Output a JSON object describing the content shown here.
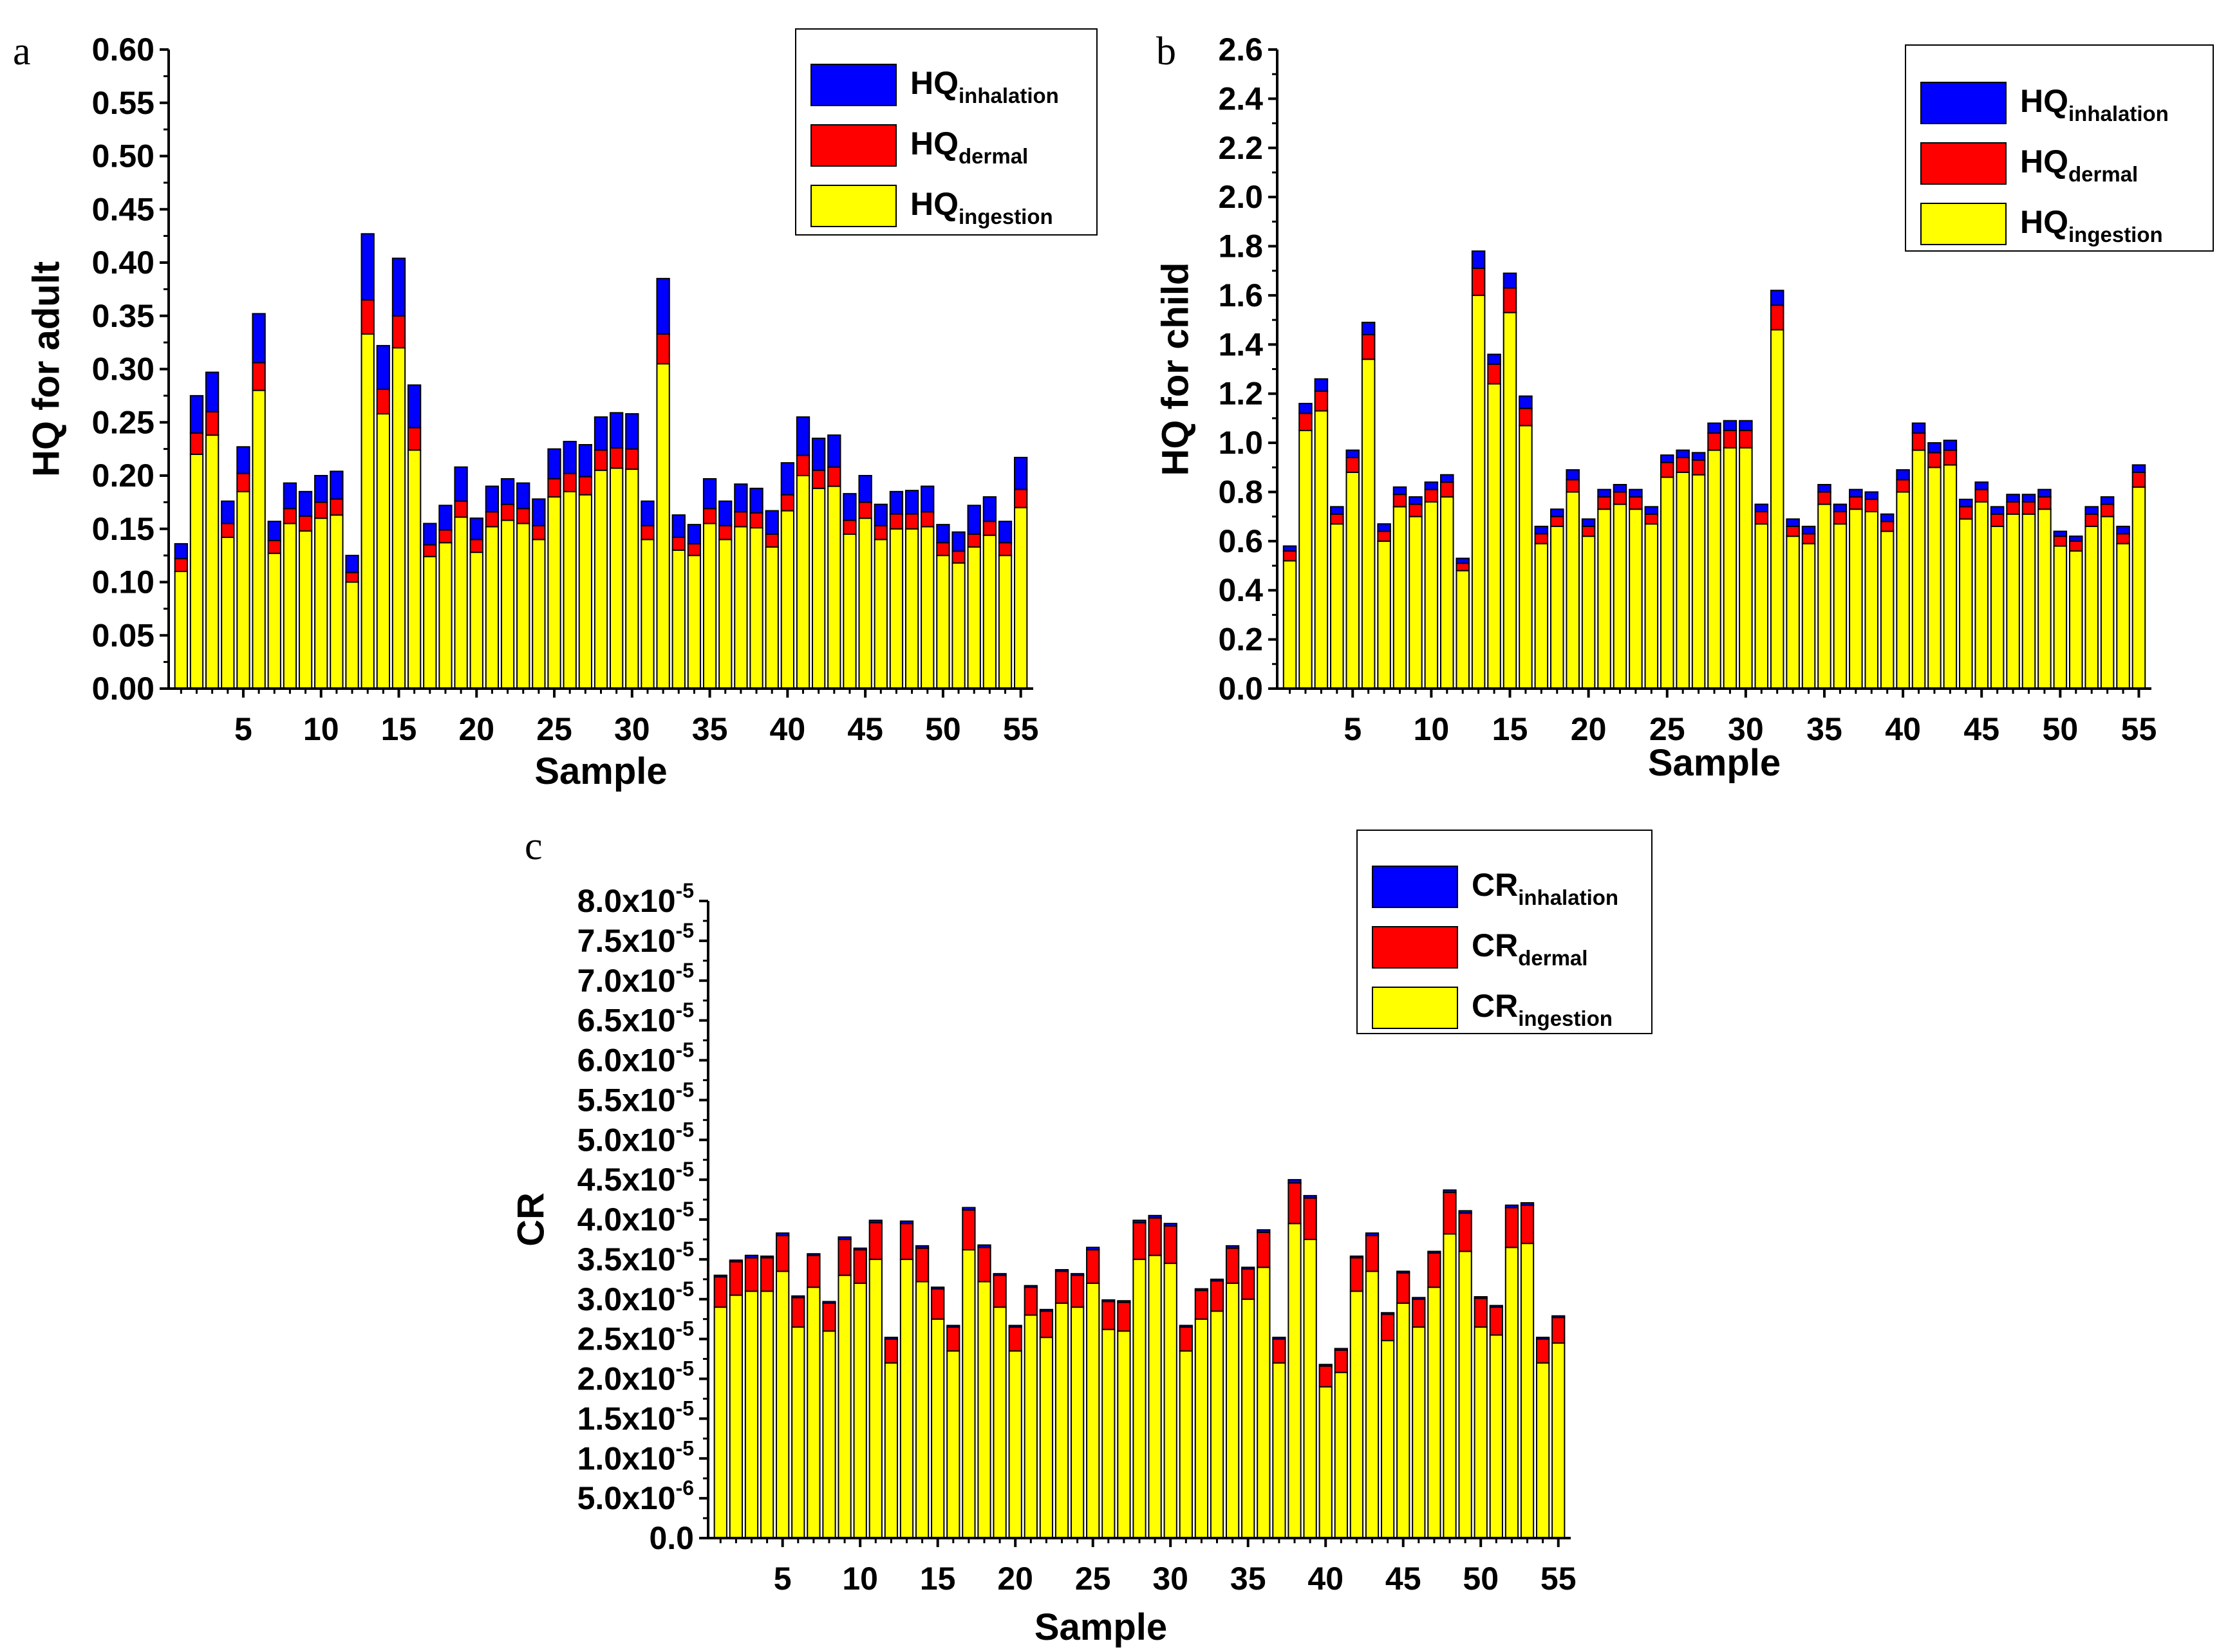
{
  "figure": {
    "colors": {
      "inhalation": "#0000FF",
      "dermal": "#FF0000",
      "ingestion": "#FFFF00",
      "stroke": "#000000"
    }
  },
  "chart_data": [
    {
      "type": "bar",
      "stacked": true,
      "panel_label": "a",
      "xlabel": "Sample",
      "ylabel": "HQ for adult",
      "ylim": [
        0,
        0.6
      ],
      "y_ticks": [
        "0.00",
        "0.05",
        "0.10",
        "0.15",
        "0.20",
        "0.25",
        "0.30",
        "0.35",
        "0.40",
        "0.45",
        "0.50",
        "0.55",
        "0.60"
      ],
      "x_ticks": [
        "5",
        "10",
        "15",
        "20",
        "25",
        "30",
        "35",
        "40",
        "45",
        "50",
        "55"
      ],
      "legend": [
        {
          "main": "HQ",
          "sub": "inhalation",
          "series": "inhalation"
        },
        {
          "main": "HQ",
          "sub": "dermal",
          "series": "dermal"
        },
        {
          "main": "HQ",
          "sub": "ingestion",
          "series": "ingestion"
        }
      ],
      "x": [
        1,
        2,
        3,
        4,
        5,
        6,
        7,
        8,
        9,
        10,
        11,
        12,
        13,
        14,
        15,
        16,
        17,
        18,
        19,
        20,
        21,
        22,
        23,
        24,
        25,
        26,
        27,
        28,
        29,
        30,
        31,
        32,
        33,
        34,
        35,
        36,
        37,
        38,
        39,
        40,
        41,
        42,
        43,
        44,
        45,
        46,
        47,
        48,
        49,
        50,
        51,
        52,
        53,
        54,
        55
      ],
      "series": [
        {
          "name": "HQingestion",
          "key": "ingestion",
          "values": [
            0.11,
            0.22,
            0.238,
            0.142,
            0.185,
            0.28,
            0.127,
            0.155,
            0.148,
            0.16,
            0.163,
            0.1,
            0.333,
            0.258,
            0.32,
            0.224,
            0.124,
            0.137,
            0.161,
            0.128,
            0.152,
            0.158,
            0.155,
            0.14,
            0.18,
            0.185,
            0.182,
            0.205,
            0.207,
            0.206,
            0.14,
            0.305,
            0.13,
            0.125,
            0.155,
            0.14,
            0.152,
            0.151,
            0.133,
            0.167,
            0.2,
            0.188,
            0.19,
            0.145,
            0.16,
            0.14,
            0.15,
            0.15,
            0.152,
            0.125,
            0.118,
            0.133,
            0.144,
            0.125,
            0.17
          ]
        },
        {
          "name": "HQdermal",
          "key": "dermal",
          "values": [
            0.012,
            0.02,
            0.022,
            0.013,
            0.017,
            0.026,
            0.012,
            0.014,
            0.014,
            0.015,
            0.015,
            0.009,
            0.032,
            0.023,
            0.03,
            0.021,
            0.011,
            0.012,
            0.015,
            0.012,
            0.014,
            0.015,
            0.014,
            0.013,
            0.017,
            0.017,
            0.017,
            0.019,
            0.019,
            0.019,
            0.013,
            0.028,
            0.012,
            0.011,
            0.014,
            0.013,
            0.014,
            0.014,
            0.012,
            0.015,
            0.019,
            0.017,
            0.018,
            0.013,
            0.015,
            0.013,
            0.014,
            0.014,
            0.014,
            0.012,
            0.011,
            0.012,
            0.013,
            0.012,
            0.017
          ]
        },
        {
          "name": "HQinhalation",
          "key": "inhalation",
          "values": [
            0.014,
            0.035,
            0.037,
            0.021,
            0.025,
            0.046,
            0.018,
            0.024,
            0.023,
            0.025,
            0.026,
            0.016,
            0.062,
            0.041,
            0.054,
            0.04,
            0.02,
            0.023,
            0.032,
            0.02,
            0.024,
            0.024,
            0.024,
            0.025,
            0.028,
            0.03,
            0.03,
            0.031,
            0.033,
            0.033,
            0.023,
            0.052,
            0.021,
            0.018,
            0.028,
            0.023,
            0.026,
            0.023,
            0.022,
            0.03,
            0.036,
            0.03,
            0.03,
            0.025,
            0.025,
            0.02,
            0.021,
            0.022,
            0.024,
            0.017,
            0.018,
            0.027,
            0.023,
            0.02,
            0.03
          ]
        }
      ]
    },
    {
      "type": "bar",
      "stacked": true,
      "panel_label": "b",
      "xlabel": "Sample",
      "ylabel": "HQ for child",
      "ylim": [
        0,
        2.6
      ],
      "y_ticks": [
        "0.0",
        "0.2",
        "0.4",
        "0.6",
        "0.8",
        "1.0",
        "1.2",
        "1.4",
        "1.6",
        "1.8",
        "2.0",
        "2.2",
        "2.4",
        "2.6"
      ],
      "x_ticks": [
        "5",
        "10",
        "15",
        "20",
        "25",
        "30",
        "35",
        "40",
        "45",
        "50",
        "55"
      ],
      "legend": [
        {
          "main": "HQ",
          "sub": "inhalation",
          "series": "inhalation"
        },
        {
          "main": "HQ",
          "sub": "dermal",
          "series": "dermal"
        },
        {
          "main": "HQ",
          "sub": "ingestion",
          "series": "ingestion"
        }
      ],
      "x": [
        1,
        2,
        3,
        4,
        5,
        6,
        7,
        8,
        9,
        10,
        11,
        12,
        13,
        14,
        15,
        16,
        17,
        18,
        19,
        20,
        21,
        22,
        23,
        24,
        25,
        26,
        27,
        28,
        29,
        30,
        31,
        32,
        33,
        34,
        35,
        36,
        37,
        38,
        39,
        40,
        41,
        42,
        43,
        44,
        45,
        46,
        47,
        48,
        49,
        50,
        51,
        52,
        53,
        54,
        55
      ],
      "series": [
        {
          "name": "HQingestion",
          "key": "ingestion",
          "values": [
            0.52,
            1.05,
            1.13,
            0.67,
            0.88,
            1.34,
            0.6,
            0.74,
            0.7,
            0.76,
            0.78,
            0.48,
            1.6,
            1.24,
            1.53,
            1.07,
            0.59,
            0.66,
            0.8,
            0.62,
            0.73,
            0.75,
            0.73,
            0.67,
            0.86,
            0.88,
            0.87,
            0.97,
            0.98,
            0.98,
            0.67,
            1.46,
            0.62,
            0.59,
            0.75,
            0.67,
            0.73,
            0.72,
            0.64,
            0.8,
            0.97,
            0.9,
            0.91,
            0.69,
            0.76,
            0.66,
            0.71,
            0.71,
            0.73,
            0.58,
            0.56,
            0.66,
            0.7,
            0.59,
            0.82
          ]
        },
        {
          "name": "HQdermal",
          "key": "dermal",
          "values": [
            0.04,
            0.07,
            0.08,
            0.04,
            0.06,
            0.1,
            0.04,
            0.05,
            0.05,
            0.05,
            0.06,
            0.03,
            0.11,
            0.08,
            0.1,
            0.07,
            0.04,
            0.04,
            0.05,
            0.04,
            0.05,
            0.05,
            0.05,
            0.04,
            0.06,
            0.06,
            0.06,
            0.07,
            0.07,
            0.07,
            0.05,
            0.1,
            0.04,
            0.04,
            0.05,
            0.05,
            0.05,
            0.05,
            0.04,
            0.05,
            0.07,
            0.06,
            0.06,
            0.05,
            0.05,
            0.05,
            0.05,
            0.05,
            0.05,
            0.04,
            0.04,
            0.05,
            0.05,
            0.04,
            0.06
          ]
        },
        {
          "name": "HQinhalation",
          "key": "inhalation",
          "values": [
            0.02,
            0.04,
            0.05,
            0.03,
            0.03,
            0.05,
            0.03,
            0.03,
            0.03,
            0.03,
            0.03,
            0.02,
            0.07,
            0.04,
            0.06,
            0.05,
            0.03,
            0.03,
            0.04,
            0.03,
            0.03,
            0.03,
            0.03,
            0.03,
            0.03,
            0.03,
            0.03,
            0.04,
            0.04,
            0.04,
            0.03,
            0.06,
            0.03,
            0.03,
            0.03,
            0.03,
            0.03,
            0.03,
            0.03,
            0.04,
            0.04,
            0.04,
            0.04,
            0.03,
            0.03,
            0.03,
            0.03,
            0.03,
            0.03,
            0.02,
            0.02,
            0.03,
            0.03,
            0.03,
            0.03
          ]
        }
      ]
    },
    {
      "type": "bar",
      "stacked": true,
      "panel_label": "c",
      "xlabel": "Sample",
      "ylabel": "CR",
      "ylim": [
        0,
        8e-05
      ],
      "y_ticks": [
        {
          "mant": "0.0",
          "exp": ""
        },
        {
          "mant": "5.0x10",
          "exp": "-6"
        },
        {
          "mant": "1.0x10",
          "exp": "-5"
        },
        {
          "mant": "1.5x10",
          "exp": "-5"
        },
        {
          "mant": "2.0x10",
          "exp": "-5"
        },
        {
          "mant": "2.5x10",
          "exp": "-5"
        },
        {
          "mant": "3.0x10",
          "exp": "-5"
        },
        {
          "mant": "3.5x10",
          "exp": "-5"
        },
        {
          "mant": "4.0x10",
          "exp": "-5"
        },
        {
          "mant": "4.5x10",
          "exp": "-5"
        },
        {
          "mant": "5.0x10",
          "exp": "-5"
        },
        {
          "mant": "5.5x10",
          "exp": "-5"
        },
        {
          "mant": "6.0x10",
          "exp": "-5"
        },
        {
          "mant": "6.5x10",
          "exp": "-5"
        },
        {
          "mant": "7.0x10",
          "exp": "-5"
        },
        {
          "mant": "7.5x10",
          "exp": "-5"
        },
        {
          "mant": "8.0x10",
          "exp": "-5"
        }
      ],
      "x_ticks": [
        "5",
        "10",
        "15",
        "20",
        "25",
        "30",
        "35",
        "40",
        "45",
        "50",
        "55"
      ],
      "legend": [
        {
          "main": "CR",
          "sub": "inhalation",
          "series": "inhalation"
        },
        {
          "main": "CR",
          "sub": "dermal",
          "series": "dermal"
        },
        {
          "main": "CR",
          "sub": "ingestion",
          "series": "ingestion"
        }
      ],
      "x": [
        1,
        2,
        3,
        4,
        5,
        6,
        7,
        8,
        9,
        10,
        11,
        12,
        13,
        14,
        15,
        16,
        17,
        18,
        19,
        20,
        21,
        22,
        23,
        24,
        25,
        26,
        27,
        28,
        29,
        30,
        31,
        32,
        33,
        34,
        35,
        36,
        37,
        38,
        39,
        40,
        41,
        42,
        43,
        44,
        45,
        46,
        47,
        48,
        49,
        50,
        51,
        52,
        53,
        54,
        55
      ],
      "series": [
        {
          "name": "CRingestion",
          "key": "ingestion",
          "values": [
            2.9e-05,
            3.05e-05,
            3.1e-05,
            3.1e-05,
            3.35e-05,
            2.65e-05,
            3.15e-05,
            2.6e-05,
            3.3e-05,
            3.2e-05,
            3.5e-05,
            2.2e-05,
            3.5e-05,
            3.22e-05,
            2.75e-05,
            2.35e-05,
            3.62e-05,
            3.22e-05,
            2.9e-05,
            2.35e-05,
            2.8e-05,
            2.52e-05,
            2.95e-05,
            2.9e-05,
            3.2e-05,
            2.62e-05,
            2.6e-05,
            3.5e-05,
            3.55e-05,
            3.45e-05,
            2.35e-05,
            2.75e-05,
            2.85e-05,
            3.2e-05,
            3e-05,
            3.4e-05,
            2.2e-05,
            3.95e-05,
            3.75e-05,
            1.9e-05,
            2.08e-05,
            3.1e-05,
            3.35e-05,
            2.48e-05,
            2.95e-05,
            2.65e-05,
            3.15e-05,
            3.82e-05,
            3.6e-05,
            2.65e-05,
            2.55e-05,
            3.65e-05,
            3.7e-05,
            2.2e-05,
            2.45e-05
          ]
        },
        {
          "name": "CRdermal",
          "key": "dermal",
          "values": [
            3.8e-06,
            4.2e-06,
            4.2e-06,
            4.2e-06,
            4.5e-06,
            3.7e-06,
            4e-06,
            3.5e-06,
            4.5e-06,
            4.2e-06,
            4.6e-06,
            3e-06,
            4.5e-06,
            4.2e-06,
            3.8e-06,
            3e-06,
            5e-06,
            4.3e-06,
            4e-06,
            3e-06,
            3.5e-06,
            3.3e-06,
            4e-06,
            4e-06,
            4.2e-06,
            3.5e-06,
            3.6e-06,
            4.6e-06,
            4.7e-06,
            4.7e-06,
            3e-06,
            3.6e-06,
            3.8e-06,
            4.4e-06,
            3.8e-06,
            4.4e-06,
            3e-06,
            5.1e-06,
            5.2e-06,
            2.6e-06,
            2.8e-06,
            4.2e-06,
            4.5e-06,
            3.3e-06,
            3.8e-06,
            3.5e-06,
            4.3e-06,
            5.2e-06,
            4.8e-06,
            3.6e-06,
            3.5e-06,
            5e-06,
            4.8e-06,
            3e-06,
            3.2e-06
          ]
        },
        {
          "name": "CRinhalation",
          "key": "inhalation",
          "values": [
            2e-07,
            2e-07,
            3e-07,
            2e-07,
            3e-07,
            2e-07,
            2e-07,
            2e-07,
            3e-07,
            2e-07,
            3e-07,
            2e-07,
            3e-07,
            3e-07,
            2e-07,
            2e-07,
            3e-07,
            3e-07,
            2e-07,
            2e-07,
            2e-07,
            2e-07,
            2e-07,
            2e-07,
            3e-07,
            2e-07,
            2e-07,
            3e-07,
            3e-07,
            3e-07,
            2e-07,
            2e-07,
            2e-07,
            3e-07,
            2e-07,
            3e-07,
            2e-07,
            4e-07,
            3e-07,
            2e-07,
            2e-07,
            2e-07,
            3e-07,
            2e-07,
            2e-07,
            2e-07,
            2e-07,
            3e-07,
            3e-07,
            2e-07,
            2e-07,
            3e-07,
            3e-07,
            2e-07,
            2e-07
          ]
        }
      ]
    }
  ]
}
